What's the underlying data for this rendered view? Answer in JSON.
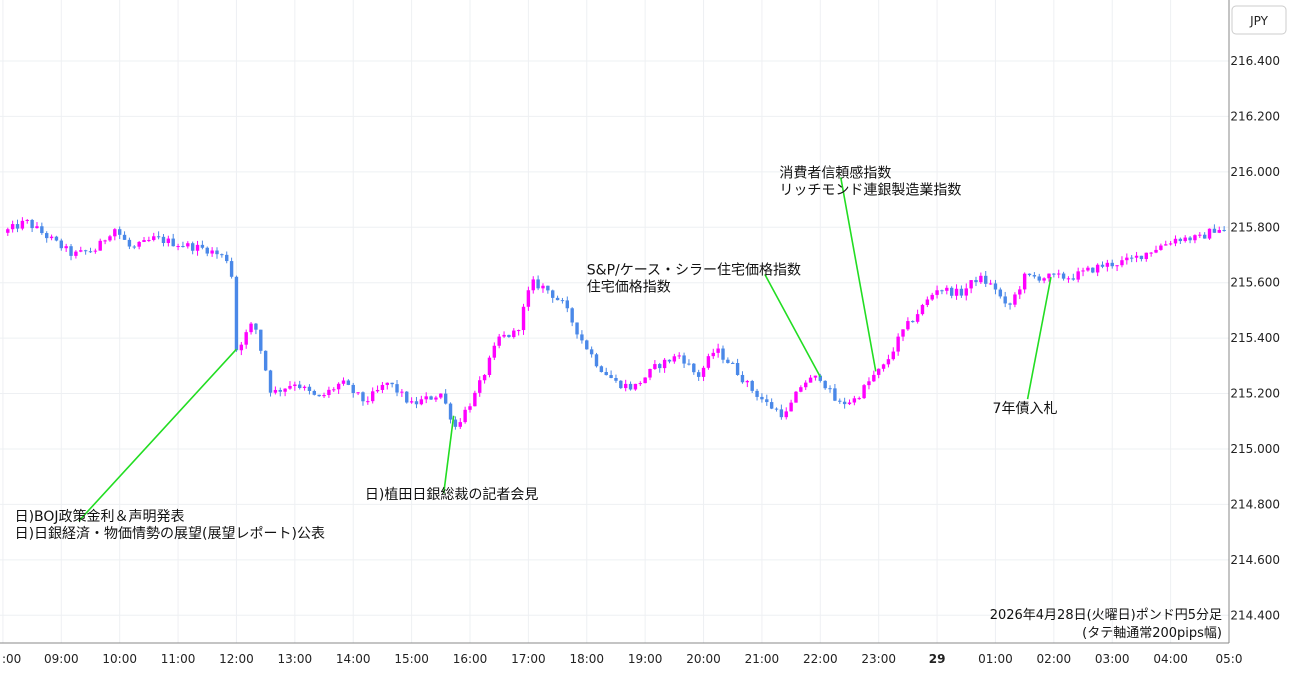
{
  "chart_data": {
    "type": "candlestick",
    "currency": "JPY",
    "caption": [
      "2026年4月28日(火曜日)ポンド円5分足",
      "(タテ軸通常200pips幅)"
    ],
    "ylim": [
      214.3,
      216.62
    ],
    "yticks": [
      "216.400",
      "216.200",
      "216.000",
      "215.800",
      "215.600",
      "215.400",
      "215.200",
      "215.000",
      "214.800",
      "214.600",
      "214.400"
    ],
    "xlim_hours": [
      7.95,
      29.0
    ],
    "xticks": [
      {
        "h": 8,
        "label": ":00"
      },
      {
        "h": 9,
        "label": "09:00"
      },
      {
        "h": 10,
        "label": "10:00"
      },
      {
        "h": 11,
        "label": "11:00"
      },
      {
        "h": 12,
        "label": "12:00"
      },
      {
        "h": 13,
        "label": "13:00"
      },
      {
        "h": 14,
        "label": "14:00"
      },
      {
        "h": 15,
        "label": "15:00"
      },
      {
        "h": 16,
        "label": "16:00"
      },
      {
        "h": 17,
        "label": "17:00"
      },
      {
        "h": 18,
        "label": "18:00"
      },
      {
        "h": 19,
        "label": "19:00"
      },
      {
        "h": 20,
        "label": "20:00"
      },
      {
        "h": 21,
        "label": "21:00"
      },
      {
        "h": 22,
        "label": "22:00"
      },
      {
        "h": 23,
        "label": "23:00"
      },
      {
        "h": 24,
        "label": "29",
        "bold": true
      },
      {
        "h": 25,
        "label": "01:00"
      },
      {
        "h": 26,
        "label": "02:00"
      },
      {
        "h": 27,
        "label": "03:00"
      },
      {
        "h": 28,
        "label": "04:00"
      },
      {
        "h": 29,
        "label": "05:0"
      }
    ],
    "up_color": "#ff00ff",
    "down_color": "#4a88e8",
    "annotation_line_color": "#22dd22",
    "candle_interval_minutes": 5,
    "closes_hourly": [
      {
        "h": 8.0,
        "v": 215.78
      },
      {
        "h": 8.4,
        "v": 215.82
      },
      {
        "h": 8.8,
        "v": 215.76
      },
      {
        "h": 9.2,
        "v": 215.7
      },
      {
        "h": 9.6,
        "v": 215.72
      },
      {
        "h": 9.9,
        "v": 215.8
      },
      {
        "h": 10.2,
        "v": 215.72
      },
      {
        "h": 10.6,
        "v": 215.76
      },
      {
        "h": 11.0,
        "v": 215.74
      },
      {
        "h": 11.5,
        "v": 215.72
      },
      {
        "h": 11.9,
        "v": 215.68
      },
      {
        "h": 12.0,
        "v": 215.36
      },
      {
        "h": 12.3,
        "v": 215.46
      },
      {
        "h": 12.6,
        "v": 215.2
      },
      {
        "h": 13.0,
        "v": 215.24
      },
      {
        "h": 13.4,
        "v": 215.18
      },
      {
        "h": 13.8,
        "v": 215.24
      },
      {
        "h": 14.2,
        "v": 215.17
      },
      {
        "h": 14.6,
        "v": 215.24
      },
      {
        "h": 15.0,
        "v": 215.16
      },
      {
        "h": 15.5,
        "v": 215.2
      },
      {
        "h": 15.75,
        "v": 215.08
      },
      {
        "h": 16.1,
        "v": 215.2
      },
      {
        "h": 16.5,
        "v": 215.4
      },
      {
        "h": 16.8,
        "v": 215.42
      },
      {
        "h": 17.05,
        "v": 215.6
      },
      {
        "h": 17.3,
        "v": 215.58
      },
      {
        "h": 17.6,
        "v": 215.52
      },
      {
        "h": 17.9,
        "v": 215.4
      },
      {
        "h": 18.2,
        "v": 215.3
      },
      {
        "h": 18.5,
        "v": 215.24
      },
      {
        "h": 18.8,
        "v": 215.22
      },
      {
        "h": 19.2,
        "v": 215.3
      },
      {
        "h": 19.6,
        "v": 215.34
      },
      {
        "h": 19.9,
        "v": 215.26
      },
      {
        "h": 20.2,
        "v": 215.36
      },
      {
        "h": 20.5,
        "v": 215.3
      },
      {
        "h": 20.8,
        "v": 215.22
      },
      {
        "h": 21.1,
        "v": 215.16
      },
      {
        "h": 21.4,
        "v": 215.12
      },
      {
        "h": 21.7,
        "v": 215.24
      },
      {
        "h": 22.0,
        "v": 215.26
      },
      {
        "h": 22.3,
        "v": 215.16
      },
      {
        "h": 22.6,
        "v": 215.18
      },
      {
        "h": 22.9,
        "v": 215.26
      },
      {
        "h": 23.1,
        "v": 215.3
      },
      {
        "h": 23.4,
        "v": 215.42
      },
      {
        "h": 23.7,
        "v": 215.5
      },
      {
        "h": 24.0,
        "v": 215.58
      },
      {
        "h": 24.4,
        "v": 215.56
      },
      {
        "h": 24.7,
        "v": 215.62
      },
      {
        "h": 25.0,
        "v": 215.58
      },
      {
        "h": 25.2,
        "v": 215.5
      },
      {
        "h": 25.5,
        "v": 215.62
      },
      {
        "h": 25.9,
        "v": 215.62
      },
      {
        "h": 26.3,
        "v": 215.62
      },
      {
        "h": 26.8,
        "v": 215.66
      },
      {
        "h": 27.3,
        "v": 215.68
      },
      {
        "h": 27.7,
        "v": 215.72
      },
      {
        "h": 28.1,
        "v": 215.76
      },
      {
        "h": 28.5,
        "v": 215.76
      },
      {
        "h": 28.8,
        "v": 215.8
      },
      {
        "h": 28.95,
        "v": 215.78
      }
    ],
    "annotations": [
      {
        "lines": [
          "日)BOJ政策金利＆声明発表",
          "日)日銀経済・物価情勢の展望(展望レポート)公表"
        ],
        "h": 12.0,
        "v": 215.36,
        "label_h": 8.2,
        "label_v": 214.74,
        "line_h": 9.3,
        "line_v": 214.74
      },
      {
        "lines": [
          "日)植田日銀総裁の記者会見"
        ],
        "h": 15.72,
        "v": 215.12,
        "label_h": 14.2,
        "label_v": 214.82,
        "line_h": 15.55,
        "line_v": 214.84
      },
      {
        "lines": [
          "S&P/ケース・シラー住宅価格指数",
          "住宅価格指数"
        ],
        "h": 22.0,
        "v": 215.26,
        "label_h": 18.0,
        "label_v": 215.63,
        "line_h": 21.05,
        "line_v": 215.63
      },
      {
        "lines": [
          "消費者信頼感指数",
          "リッチモンド連銀製造業指数"
        ],
        "h": 22.95,
        "v": 215.28,
        "label_h": 21.3,
        "label_v": 215.98,
        "line_h": 22.35,
        "line_v": 215.98
      },
      {
        "lines": [
          "7年債入札"
        ],
        "h": 25.95,
        "v": 215.62,
        "label_h": 24.95,
        "label_v": 215.13,
        "line_h": 25.55,
        "line_v": 215.18
      }
    ]
  }
}
